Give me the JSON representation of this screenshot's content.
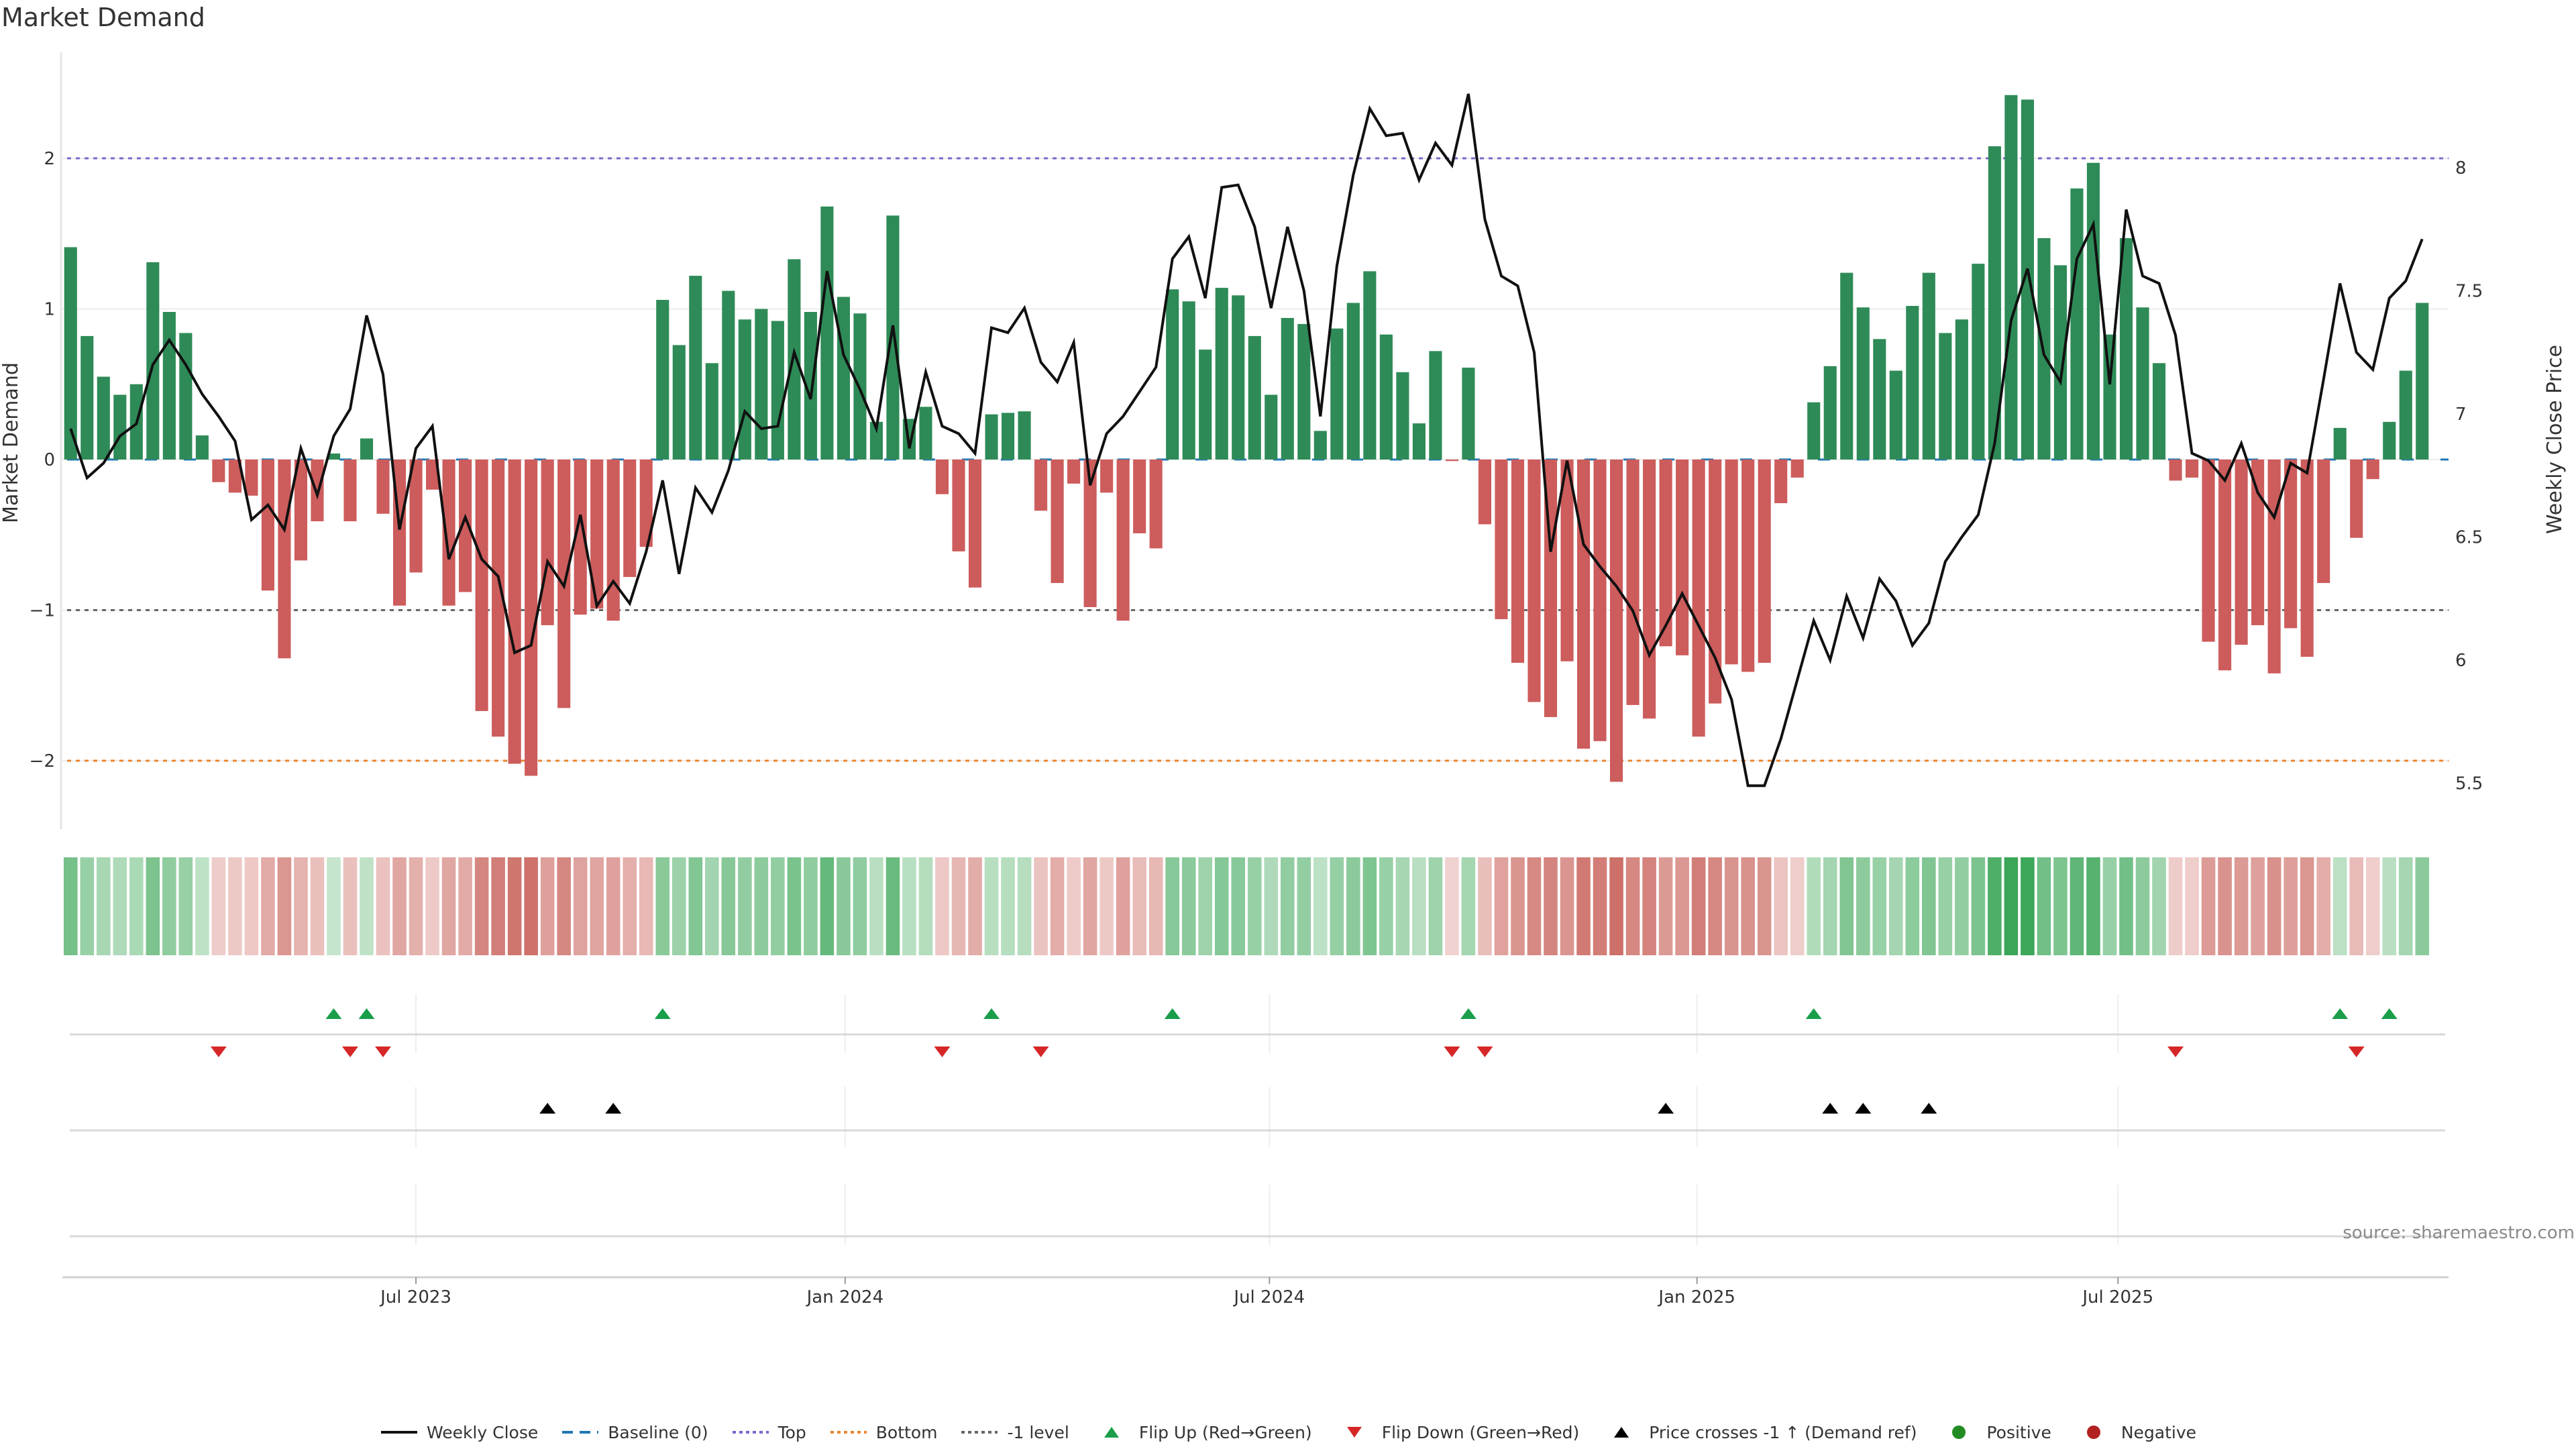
{
  "chart_data": {
    "type": "bar",
    "title": "Market Demand",
    "ylabel": "Market Demand",
    "y2label": "Weekly Close Price",
    "ylim": [
      -2.45,
      2.7
    ],
    "y2lim": [
      5.45,
      8.45
    ],
    "yticks": [
      "2",
      "1",
      "0",
      "−1",
      "−2"
    ],
    "ytick_values": [
      2,
      1,
      0,
      -1,
      -2
    ],
    "y2ticks": [
      "8",
      "7.5",
      "7",
      "6.5",
      "6",
      "5.5"
    ],
    "y2tick_values": [
      8,
      7.5,
      7,
      6.5,
      6,
      5.5
    ],
    "xticks": [
      {
        "label": "Jul 2023",
        "week": 22
      },
      {
        "label": "Jan 2024",
        "week": 48.1
      },
      {
        "label": "Jul 2024",
        "week": 73.9
      },
      {
        "label": "Jan 2025",
        "week": 99.9
      },
      {
        "label": "Jul 2025",
        "week": 125.5
      }
    ],
    "reference_lines": [
      {
        "name": "Baseline (0)",
        "value": 0,
        "color": "#1f77b4",
        "style": "dashed"
      },
      {
        "name": "Top",
        "value": 2,
        "color": "#7b68cc",
        "style": "dotted"
      },
      {
        "name": "Bottom",
        "value": -2,
        "color": "#e8872f",
        "style": "dotted"
      },
      {
        "name": "-1 level",
        "value": -1,
        "color": "#666666",
        "style": "dotted"
      }
    ],
    "demand": [
      1.41,
      0.82,
      0.55,
      0.43,
      0.5,
      1.31,
      0.98,
      0.84,
      0.16,
      -0.15,
      -0.22,
      -0.24,
      -0.87,
      -1.32,
      -0.67,
      -0.41,
      0.04,
      -0.41,
      0.14,
      -0.36,
      -0.97,
      -0.75,
      -0.2,
      -0.97,
      -0.88,
      -1.67,
      -1.84,
      -2.02,
      -2.1,
      -1.1,
      -1.65,
      -1.03,
      -0.99,
      -1.07,
      -0.78,
      -0.58,
      1.06,
      0.76,
      1.22,
      0.64,
      1.12,
      0.93,
      1.0,
      0.92,
      1.33,
      0.98,
      1.68,
      1.08,
      0.97,
      0.25,
      1.62,
      0.27,
      0.35,
      -0.23,
      -0.61,
      -0.85,
      0.3,
      0.31,
      0.32,
      -0.34,
      -0.82,
      -0.16,
      -0.98,
      -0.22,
      -1.07,
      -0.49,
      -0.59,
      1.13,
      1.05,
      0.73,
      1.14,
      1.09,
      0.82,
      0.43,
      0.94,
      0.9,
      0.19,
      0.87,
      1.04,
      1.25,
      0.83,
      0.58,
      0.24,
      0.72,
      -0.01,
      0.61,
      -0.43,
      -1.06,
      -1.35,
      -1.61,
      -1.71,
      -1.34,
      -1.92,
      -1.87,
      -2.14,
      -1.63,
      -1.72,
      -1.24,
      -1.3,
      -1.84,
      -1.62,
      -1.36,
      -1.41,
      -1.35,
      -0.29,
      -0.12,
      0.38,
      0.62,
      1.24,
      1.01,
      0.8,
      0.59,
      1.02,
      1.24,
      0.84,
      0.93,
      1.3,
      2.08,
      2.42,
      2.39,
      1.47,
      1.29,
      1.8,
      1.97,
      0.83,
      1.47,
      1.01,
      0.64,
      -0.14,
      -0.12,
      -1.21,
      -1.4,
      -1.23,
      -1.1,
      -1.42,
      -1.12,
      -1.31,
      -0.82,
      0.21,
      -0.52,
      -0.13,
      0.25,
      0.59,
      1.04
    ],
    "weekly_close": [
      6.94,
      6.74,
      6.8,
      6.91,
      6.96,
      7.2,
      7.3,
      7.2,
      7.08,
      6.99,
      6.89,
      6.57,
      6.63,
      6.53,
      6.86,
      6.67,
      6.91,
      7.02,
      7.4,
      7.16,
      6.53,
      6.86,
      6.95,
      6.41,
      6.58,
      6.41,
      6.34,
      6.03,
      6.06,
      6.4,
      6.3,
      6.59,
      6.22,
      6.32,
      6.23,
      6.44,
      6.73,
      6.35,
      6.7,
      6.6,
      6.77,
      7.01,
      6.94,
      6.95,
      7.25,
      7.06,
      7.58,
      7.24,
      7.1,
      6.94,
      7.36,
      6.86,
      7.17,
      6.95,
      6.92,
      6.84,
      7.35,
      7.33,
      7.43,
      7.21,
      7.13,
      7.29,
      6.71,
      6.92,
      6.99,
      7.09,
      7.19,
      7.63,
      7.72,
      7.47,
      7.92,
      7.93,
      7.76,
      7.43,
      7.76,
      7.5,
      6.99,
      7.6,
      7.97,
      8.24,
      8.13,
      8.14,
      7.95,
      8.1,
      8.01,
      8.3,
      7.79,
      7.56,
      7.52,
      7.25,
      6.44,
      6.81,
      6.47,
      6.38,
      6.3,
      6.2,
      6.02,
      6.14,
      6.27,
      6.14,
      6.01,
      5.84,
      5.49,
      5.49,
      5.68,
      5.92,
      6.16,
      6.0,
      6.26,
      6.09,
      6.33,
      6.24,
      6.06,
      6.15,
      6.4,
      6.5,
      6.59,
      6.88,
      7.38,
      7.59,
      7.24,
      7.13,
      7.63,
      7.77,
      7.12,
      7.83,
      7.56,
      7.53,
      7.32,
      6.84,
      6.81,
      6.73,
      6.88,
      6.68,
      6.58,
      6.8,
      6.76,
      7.14,
      7.53,
      7.25,
      7.18,
      7.47,
      7.54,
      7.71
    ],
    "flip_up_weeks": [
      17,
      19,
      37,
      57,
      68,
      86,
      107,
      139,
      142
    ],
    "flip_down_weeks": [
      10,
      18,
      20,
      54,
      60,
      85,
      87,
      129,
      140
    ],
    "price_cross_weeks": [
      30,
      34,
      98,
      108,
      110,
      114
    ],
    "legend": [
      {
        "label": "Weekly Close",
        "kind": "line",
        "color": "#111111"
      },
      {
        "label": "Baseline (0)",
        "kind": "dash",
        "color": "#1f77b4"
      },
      {
        "label": "Top",
        "kind": "dot",
        "color": "#7b68cc"
      },
      {
        "label": "Bottom",
        "kind": "dot",
        "color": "#e8872f"
      },
      {
        "label": "-1 level",
        "kind": "dot",
        "color": "#666666"
      },
      {
        "label": "Flip Up (Red→Green)",
        "kind": "tri-up",
        "color": "#1a9e4a"
      },
      {
        "label": "Flip Down (Green→Red)",
        "kind": "tri-down",
        "color": "#d62728"
      },
      {
        "label": "Price crosses -1 ↑ (Demand ref)",
        "kind": "tri-up",
        "color": "#000000"
      },
      {
        "label": "Positive",
        "kind": "circle",
        "color": "#228b22"
      },
      {
        "label": "Negative",
        "kind": "circle",
        "color": "#b22222"
      }
    ],
    "legend_position": "bottom-center",
    "colors": {
      "positive_bar": "#2e8b57",
      "negative_bar": "#cd5c5c",
      "heat_positive": "#3aa557",
      "heat_negative": "#c8625a",
      "price_line": "#111111"
    }
  },
  "source": "source: sharemaestro.com"
}
